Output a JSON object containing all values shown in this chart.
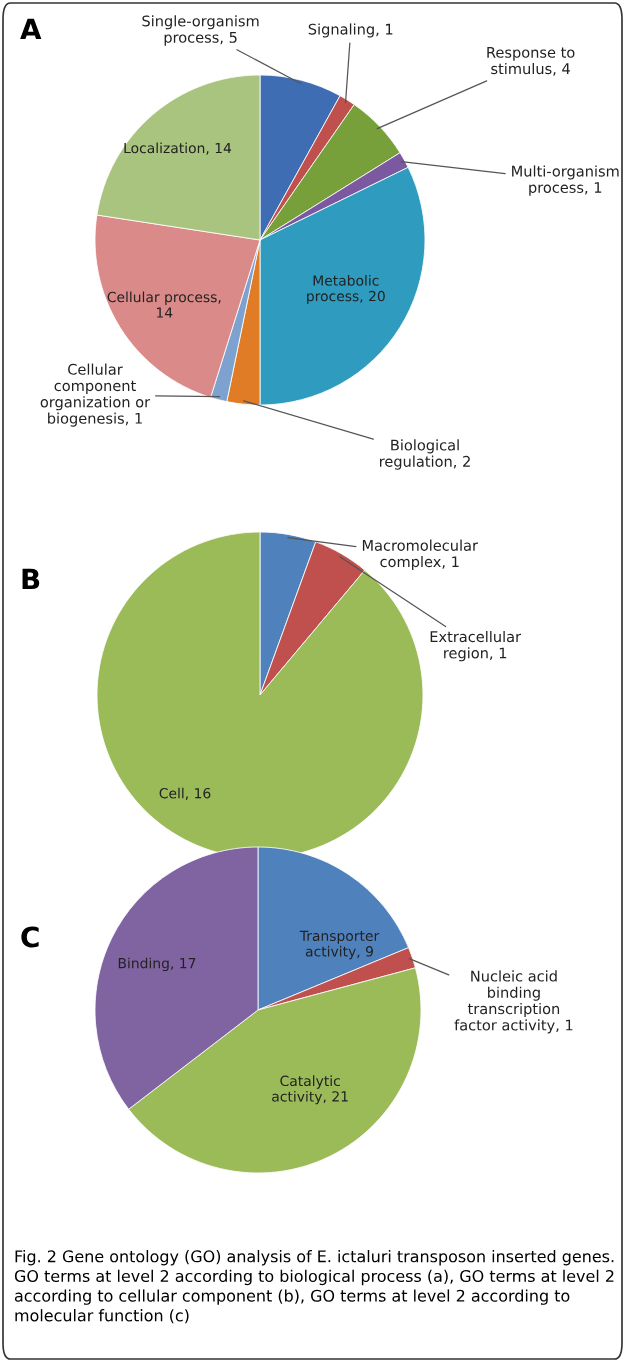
{
  "chart_data": [
    {
      "type": "pie",
      "title": "A",
      "categories": [
        "Single-organism process, 5",
        "Signaling, 1",
        "Response to stimulus, 4",
        "Multi-organism process, 1",
        "Metabolic process, 20",
        "Biological regulation, 2",
        "Cellular component organization or biogenesis, 1",
        "Cellular process, 14",
        "Localization, 14"
      ],
      "values": [
        5,
        1,
        4,
        1,
        20,
        2,
        1,
        14,
        14
      ],
      "colors": [
        "#3f6db3",
        "#c0504d",
        "#77a03b",
        "#7b58a0",
        "#2e9bbf",
        "#e07b26",
        "#7ea2cf",
        "#d98a89",
        "#a9c47f"
      ]
    },
    {
      "type": "pie",
      "title": "B",
      "categories": [
        "Macromolecular complex, 1",
        "Extracellular region, 1",
        "Cell, 16"
      ],
      "values": [
        1,
        1,
        16
      ],
      "colors": [
        "#4f81bd",
        "#c0504d",
        "#9bbb59"
      ]
    },
    {
      "type": "pie",
      "title": "C",
      "categories": [
        "Transporter activity, 9",
        "Nucleic acid binding transcription factor activity, 1",
        "Catalytic activity, 21",
        "Binding, 17"
      ],
      "values": [
        9,
        1,
        21,
        17
      ],
      "colors": [
        "#4f81bd",
        "#c0504d",
        "#9bbb59",
        "#8064a2"
      ],
      "annotations": [
        "Fig. 2 Gene ontology (GO) analysis of E. ictaluri transposon inserted genes. GO terms at level 2 according to biological process (a), GO terms at level 2 according to cellular component (b), GO terms at level 2 according to molecular function (c)"
      ]
    }
  ]
}
